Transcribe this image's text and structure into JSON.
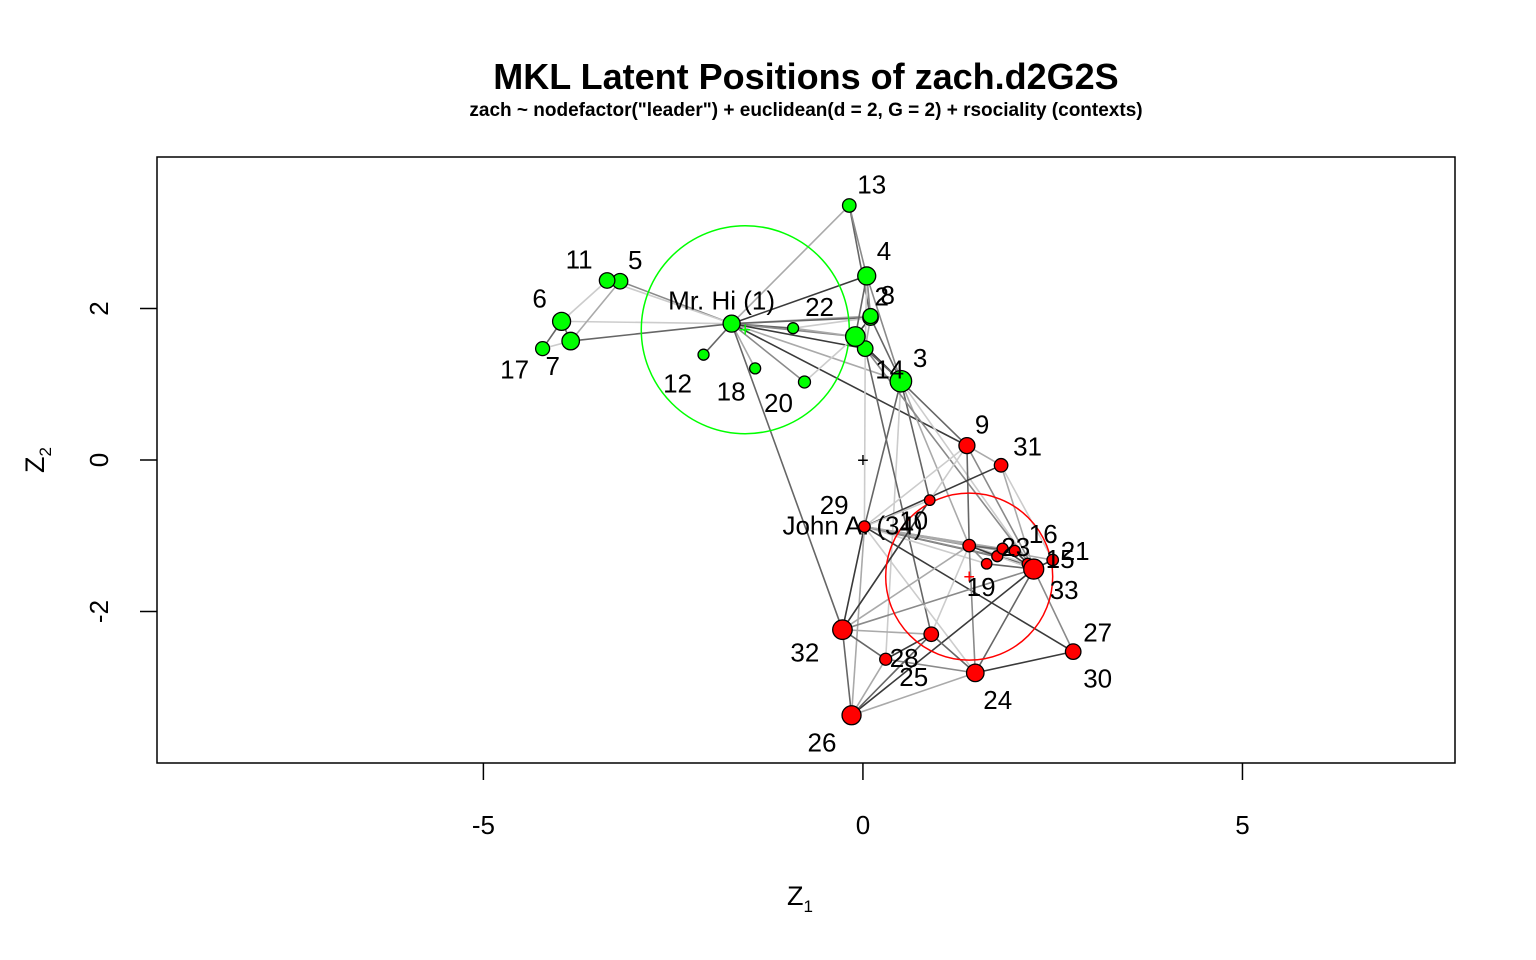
{
  "chart_data": {
    "type": "scatter",
    "title": "MKL Latent Positions of zach.d2G2S",
    "subtitle": "zach ~ nodefactor(\"leader\") + euclidean(d = 2, G = 2) + rsociality   (contexts)",
    "xlabel": "Z",
    "xlabel_sub": "1",
    "ylabel": "Z",
    "ylabel_sub": "2",
    "xlim": [
      -9.3,
      7.8
    ],
    "ylim": [
      -4.0,
      4.0
    ],
    "x_ticks": [
      -5,
      0,
      5
    ],
    "y_ticks": [
      -2,
      0,
      2
    ],
    "grid": false,
    "colors": {
      "group1": "#00ff00",
      "group2": "#ff0000",
      "axes": "#000000"
    },
    "center_marker": {
      "x": 0,
      "y": 0,
      "label": "+"
    },
    "clusters": [
      {
        "x": -1.55,
        "y": 1.72,
        "radius": 1.37,
        "color": "#00ff00"
      },
      {
        "x": 1.4,
        "y": -1.54,
        "radius": 1.1,
        "color": "#ff0000"
      }
    ],
    "nodes": [
      {
        "id": 1,
        "label": "Mr. Hi (1)",
        "x": -1.73,
        "y": 1.8,
        "group": 1,
        "size": 1.1
      },
      {
        "id": 2,
        "label": "2",
        "x": 0.1,
        "y": 1.88,
        "group": 1,
        "size": 0.95
      },
      {
        "id": 3,
        "label": "3",
        "x": 0.5,
        "y": 1.04,
        "group": 1,
        "size": 1.55
      },
      {
        "id": 4,
        "label": "4",
        "x": 0.05,
        "y": 2.43,
        "group": 1,
        "size": 1.2
      },
      {
        "id": 5,
        "label": "5",
        "x": -3.2,
        "y": 2.36,
        "group": 1,
        "size": 0.95
      },
      {
        "id": 6,
        "label": "6",
        "x": -3.97,
        "y": 1.83,
        "group": 1,
        "size": 1.2
      },
      {
        "id": 7,
        "label": "7",
        "x": -3.85,
        "y": 1.57,
        "group": 1,
        "size": 1.15
      },
      {
        "id": 8,
        "label": "8",
        "x": 0.1,
        "y": 1.9,
        "group": 1,
        "size": 0.9
      },
      {
        "id": 11,
        "label": "11",
        "x": -3.37,
        "y": 2.37,
        "group": 1,
        "size": 0.95
      },
      {
        "id": 12,
        "label": "12",
        "x": -2.1,
        "y": 1.39,
        "group": 1,
        "size": 0.5
      },
      {
        "id": 13,
        "label": "13",
        "x": -0.18,
        "y": 3.36,
        "group": 1,
        "size": 0.75
      },
      {
        "id": 14,
        "label": "14",
        "x": 0.03,
        "y": 1.47,
        "group": 1,
        "size": 0.95
      },
      {
        "id": 17,
        "label": "17",
        "x": -4.22,
        "y": 1.47,
        "group": 1,
        "size": 0.8
      },
      {
        "id": 18,
        "label": "18",
        "x": -1.42,
        "y": 1.21,
        "group": 1,
        "size": 0.5
      },
      {
        "id": 20,
        "label": "20",
        "x": -0.77,
        "y": 1.03,
        "group": 1,
        "size": 0.6
      },
      {
        "id": 22,
        "label": "22",
        "x": -0.92,
        "y": 1.74,
        "group": 1,
        "size": 0.5
      },
      {
        "id": 100,
        "label": "",
        "x": -0.1,
        "y": 1.63,
        "group": 1,
        "size": 1.35
      },
      {
        "id": 9,
        "label": "9",
        "x": 1.37,
        "y": 0.19,
        "group": 2,
        "size": 1.0
      },
      {
        "id": 10,
        "label": "10",
        "x": 1.4,
        "y": -1.13,
        "group": 2,
        "size": 0.65
      },
      {
        "id": 15,
        "label": "15",
        "x": 2.17,
        "y": -1.37,
        "group": 2,
        "size": 0.5
      },
      {
        "id": 16,
        "label": "16",
        "x": 2.0,
        "y": -1.2,
        "group": 2,
        "size": 0.5
      },
      {
        "id": 19,
        "label": "19",
        "x": 1.63,
        "y": -1.37,
        "group": 2,
        "size": 0.45
      },
      {
        "id": 21,
        "label": "21",
        "x": 2.5,
        "y": -1.32,
        "group": 2,
        "size": 0.55
      },
      {
        "id": 23,
        "label": "23",
        "x": 1.77,
        "y": -1.27,
        "group": 2,
        "size": 0.5
      },
      {
        "id": 24,
        "label": "24",
        "x": 1.48,
        "y": -2.81,
        "group": 2,
        "size": 1.15
      },
      {
        "id": 25,
        "label": "25",
        "x": 0.9,
        "y": -2.3,
        "group": 2,
        "size": 0.85
      },
      {
        "id": 26,
        "label": "26",
        "x": -0.15,
        "y": -3.37,
        "group": 2,
        "size": 1.3
      },
      {
        "id": 27,
        "label": "27",
        "x": 2.77,
        "y": -2.53,
        "group": 2,
        "size": 0.95
      },
      {
        "id": 28,
        "label": "28",
        "x": 0.3,
        "y": -2.63,
        "group": 2,
        "size": 0.6
      },
      {
        "id": 29,
        "label": "29",
        "x": 0.88,
        "y": -0.53,
        "group": 2,
        "size": 0.45
      },
      {
        "id": 31,
        "label": "31",
        "x": 1.82,
        "y": -0.07,
        "group": 2,
        "size": 0.75
      },
      {
        "id": 32,
        "label": "32",
        "x": -0.27,
        "y": -2.24,
        "group": 2,
        "size": 1.35
      },
      {
        "id": 33,
        "label": "33",
        "x": 2.25,
        "y": -1.44,
        "group": 2,
        "size": 1.4
      },
      {
        "id": 34,
        "label": "John A. (34)",
        "x": 0.02,
        "y": -0.88,
        "group": 2,
        "size": 0.55
      },
      {
        "id": 101,
        "label": "",
        "x": 1.84,
        "y": -1.17,
        "group": 2,
        "size": 0.5
      }
    ],
    "edges": [
      [
        1,
        5
      ],
      [
        1,
        6
      ],
      [
        1,
        7
      ],
      [
        1,
        11
      ],
      [
        1,
        12
      ],
      [
        1,
        18
      ],
      [
        1,
        20
      ],
      [
        1,
        22
      ],
      [
        1,
        100
      ],
      [
        1,
        4
      ],
      [
        1,
        14
      ],
      [
        1,
        3
      ],
      [
        1,
        13
      ],
      [
        1,
        8
      ],
      [
        1,
        2
      ],
      [
        1,
        32
      ],
      [
        1,
        9
      ],
      [
        5,
        7
      ],
      [
        5,
        11
      ],
      [
        6,
        7
      ],
      [
        6,
        17
      ],
      [
        7,
        17
      ],
      [
        6,
        11
      ],
      [
        2,
        4
      ],
      [
        2,
        8
      ],
      [
        2,
        100
      ],
      [
        2,
        14
      ],
      [
        2,
        3
      ],
      [
        2,
        22
      ],
      [
        2,
        13
      ],
      [
        4,
        8
      ],
      [
        4,
        100
      ],
      [
        4,
        14
      ],
      [
        4,
        3
      ],
      [
        4,
        13
      ],
      [
        100,
        22
      ],
      [
        100,
        20
      ],
      [
        100,
        14
      ],
      [
        100,
        3
      ],
      [
        3,
        14
      ],
      [
        3,
        9
      ],
      [
        3,
        10
      ],
      [
        3,
        28
      ],
      [
        3,
        33
      ],
      [
        3,
        29
      ],
      [
        3,
        34
      ],
      [
        14,
        34
      ],
      [
        14,
        33
      ],
      [
        14,
        25
      ],
      [
        9,
        31
      ],
      [
        9,
        34
      ],
      [
        9,
        33
      ],
      [
        9,
        10
      ],
      [
        31,
        33
      ],
      [
        31,
        34
      ],
      [
        31,
        21
      ],
      [
        34,
        10
      ],
      [
        34,
        15
      ],
      [
        34,
        16
      ],
      [
        34,
        19
      ],
      [
        34,
        21
      ],
      [
        34,
        23
      ],
      [
        34,
        27
      ],
      [
        34,
        101
      ],
      [
        34,
        24
      ],
      [
        34,
        29
      ],
      [
        34,
        32
      ],
      [
        34,
        26
      ],
      [
        10,
        33
      ],
      [
        10,
        15
      ],
      [
        10,
        16
      ],
      [
        10,
        23
      ],
      [
        10,
        19
      ],
      [
        10,
        24
      ],
      [
        10,
        25
      ],
      [
        10,
        32
      ],
      [
        33,
        15
      ],
      [
        33,
        16
      ],
      [
        33,
        19
      ],
      [
        33,
        21
      ],
      [
        33,
        23
      ],
      [
        33,
        24
      ],
      [
        33,
        27
      ],
      [
        33,
        32
      ],
      [
        33,
        26
      ],
      [
        33,
        101
      ],
      [
        33,
        30
      ],
      [
        24,
        26
      ],
      [
        24,
        27
      ],
      [
        24,
        30
      ],
      [
        24,
        25
      ],
      [
        24,
        28
      ],
      [
        25,
        32
      ],
      [
        25,
        26
      ],
      [
        25,
        28
      ],
      [
        26,
        32
      ],
      [
        26,
        28
      ],
      [
        32,
        28
      ],
      [
        32,
        29
      ],
      [
        29,
        32
      ],
      [
        29,
        9
      ]
    ],
    "extra_labels": [
      {
        "text": "30",
        "for": 27
      }
    ]
  }
}
